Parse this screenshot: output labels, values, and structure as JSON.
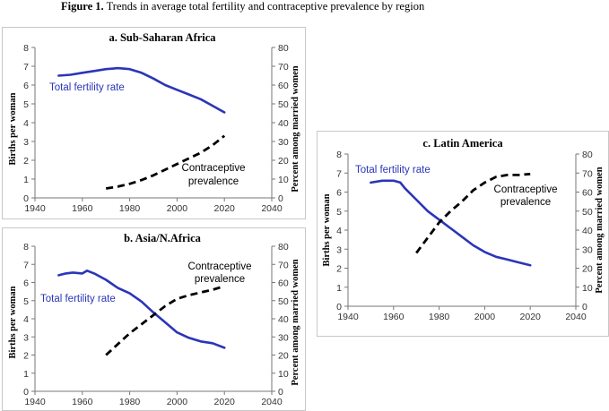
{
  "figure": {
    "title_bold": "Figure 1.",
    "title_rest": " Trends in average total fertility and contraceptive prevalence by region"
  },
  "chart_data": [
    {
      "type": "line",
      "title": "a. Sub-Saharan Africa",
      "ylabel": "Births per woman",
      "y2label": "Percent among married women",
      "xlim": [
        1940,
        2040
      ],
      "ylim": [
        0,
        8
      ],
      "y2lim": [
        0,
        80
      ],
      "xticks": [
        "1940",
        "1960",
        "1980",
        "2000",
        "2020",
        "2040"
      ],
      "yticks": [
        "0",
        "1",
        "2",
        "3",
        "4",
        "5",
        "6",
        "7",
        "8"
      ],
      "y2ticks": [
        "0",
        "10",
        "20",
        "30",
        "40",
        "50",
        "60",
        "70",
        "80"
      ],
      "series": [
        {
          "name": "Total fertility rate",
          "axis": "left",
          "style": "solid",
          "color": "#2b35b8",
          "x": [
            1950,
            1955,
            1960,
            1965,
            1970,
            1975,
            1980,
            1985,
            1990,
            1995,
            2000,
            2005,
            2010,
            2015,
            2020
          ],
          "y": [
            6.5,
            6.55,
            6.65,
            6.75,
            6.85,
            6.9,
            6.85,
            6.65,
            6.35,
            6.0,
            5.75,
            5.5,
            5.25,
            4.9,
            4.55
          ]
        },
        {
          "name": "Contraceptive prevalence",
          "axis": "right",
          "style": "dashed",
          "color": "#000000",
          "x": [
            1970,
            1975,
            1980,
            1985,
            1990,
            1995,
            2000,
            2005,
            2010,
            2015,
            2020
          ],
          "y": [
            5,
            6,
            7.5,
            9.5,
            12,
            15,
            18,
            21,
            24,
            28,
            33
          ]
        }
      ]
    },
    {
      "type": "line",
      "title": "b. Asia/N.Africa",
      "ylabel": "Births per woman",
      "y2label": "Percent among married women",
      "xlim": [
        1940,
        2040
      ],
      "ylim": [
        0,
        8
      ],
      "y2lim": [
        0,
        80
      ],
      "xticks": [
        "1940",
        "1960",
        "1980",
        "2000",
        "2020",
        "2040"
      ],
      "yticks": [
        "0",
        "1",
        "2",
        "3",
        "4",
        "5",
        "6",
        "7",
        "8"
      ],
      "y2ticks": [
        "0",
        "10",
        "20",
        "30",
        "40",
        "50",
        "60",
        "70",
        "80"
      ],
      "series": [
        {
          "name": "Total fertility rate",
          "axis": "left",
          "style": "solid",
          "color": "#2b35b8",
          "x": [
            1950,
            1953,
            1956,
            1960,
            1962,
            1965,
            1970,
            1975,
            1980,
            1985,
            1990,
            1995,
            2000,
            2005,
            2010,
            2015,
            2020
          ],
          "y": [
            6.4,
            6.5,
            6.55,
            6.5,
            6.65,
            6.5,
            6.15,
            5.7,
            5.4,
            4.95,
            4.35,
            3.8,
            3.25,
            2.95,
            2.75,
            2.65,
            2.4
          ]
        },
        {
          "name": "Contraceptive prevalence",
          "axis": "right",
          "style": "dashed",
          "color": "#000000",
          "x": [
            1970,
            1975,
            1980,
            1985,
            1990,
            1995,
            2000,
            2005,
            2010,
            2015,
            2020
          ],
          "y": [
            20,
            26,
            32,
            37,
            42,
            47,
            51,
            53,
            54.5,
            56,
            58
          ]
        }
      ]
    },
    {
      "type": "line",
      "title": "c. Latin America",
      "ylabel": "Births per woman",
      "y2label": "Percent among married women",
      "xlim": [
        1940,
        2040
      ],
      "ylim": [
        0,
        8
      ],
      "y2lim": [
        0,
        80
      ],
      "xticks": [
        "1940",
        "1960",
        "1980",
        "2000",
        "2020",
        "2040"
      ],
      "yticks": [
        "0",
        "1",
        "2",
        "3",
        "4",
        "5",
        "6",
        "7",
        "8"
      ],
      "y2ticks": [
        "0",
        "10",
        "20",
        "30",
        "40",
        "50",
        "60",
        "70",
        "80"
      ],
      "series": [
        {
          "name": "Total fertility rate",
          "axis": "left",
          "style": "solid",
          "color": "#2b35b8",
          "x": [
            1950,
            1955,
            1960,
            1963,
            1965,
            1970,
            1975,
            1980,
            1985,
            1990,
            1995,
            2000,
            2005,
            2010,
            2015,
            2020
          ],
          "y": [
            6.5,
            6.6,
            6.6,
            6.5,
            6.2,
            5.6,
            5.0,
            4.55,
            4.1,
            3.65,
            3.2,
            2.85,
            2.6,
            2.45,
            2.3,
            2.15
          ]
        },
        {
          "name": "Contraceptive prevalence",
          "axis": "right",
          "style": "dashed",
          "color": "#000000",
          "x": [
            1970,
            1975,
            1980,
            1985,
            1990,
            1995,
            2000,
            2005,
            2010,
            2015,
            2020
          ],
          "y": [
            28,
            36,
            44,
            50,
            55,
            61,
            65,
            68,
            69,
            69,
            69.5
          ]
        }
      ]
    }
  ]
}
